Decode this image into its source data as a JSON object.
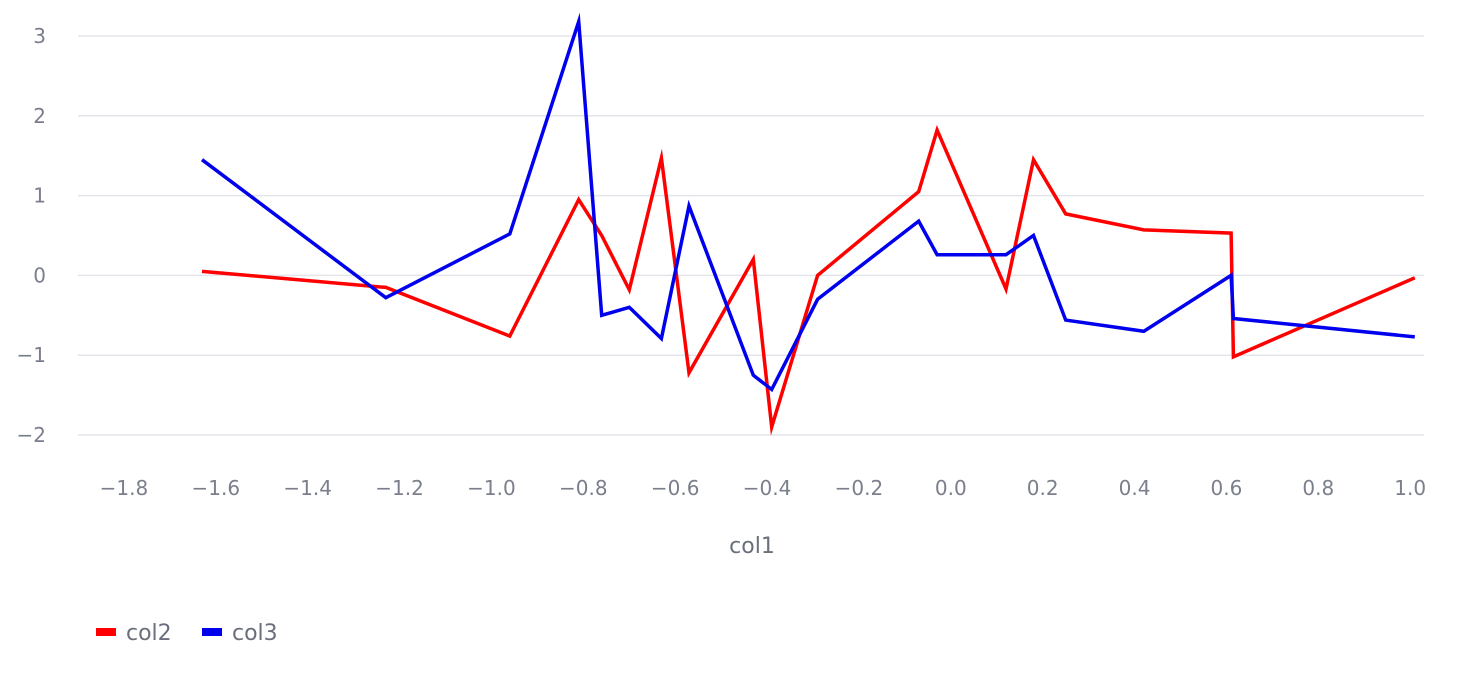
{
  "chart_data": {
    "type": "line",
    "xlabel": "col1",
    "ylabel": "",
    "xlim": [
      -1.9,
      1.03
    ],
    "ylim": [
      -2.15,
      3.2
    ],
    "x_ticks": [
      -1.8,
      -1.6,
      -1.4,
      -1.2,
      -1.0,
      -0.8,
      -0.6,
      -0.4,
      -0.2,
      0.0,
      0.2,
      0.4,
      0.6,
      0.8,
      1.0
    ],
    "x_tick_labels": [
      "−1.8",
      "−1.6",
      "−1.4",
      "−1.2",
      "−1.0",
      "−0.8",
      "−0.6",
      "−0.4",
      "−0.2",
      "0.0",
      "0.2",
      "0.4",
      "0.6",
      "0.8",
      "1.0"
    ],
    "y_ticks": [
      3,
      2,
      1,
      0,
      -1,
      -2
    ],
    "y_tick_labels": [
      "3",
      "2",
      "1",
      "0",
      "−1",
      "−2"
    ],
    "grid": "horizontal",
    "legend_position": "bottom-left",
    "x": [
      -1.63,
      -1.23,
      -0.96,
      -0.81,
      -0.76,
      -0.7,
      -0.63,
      -0.57,
      -0.43,
      -0.39,
      -0.29,
      -0.07,
      -0.03,
      0.12,
      0.18,
      0.25,
      0.42,
      0.61,
      0.615,
      1.01
    ],
    "series": [
      {
        "name": "col2",
        "color": "#ff0000",
        "values": [
          0.05,
          -0.15,
          -0.76,
          0.95,
          0.5,
          -0.18,
          1.47,
          -1.22,
          0.2,
          -1.9,
          0.0,
          1.05,
          1.82,
          -0.17,
          1.45,
          0.77,
          0.57,
          0.53,
          -1.02,
          -0.03
        ]
      },
      {
        "name": "col3",
        "color": "#0000ee",
        "values": [
          1.45,
          -0.28,
          0.52,
          3.18,
          -0.5,
          -0.4,
          -0.79,
          0.87,
          -1.25,
          -1.43,
          -0.3,
          0.68,
          0.26,
          0.26,
          0.5,
          -0.56,
          -0.7,
          0.0,
          -0.54,
          -0.77
        ]
      }
    ]
  }
}
